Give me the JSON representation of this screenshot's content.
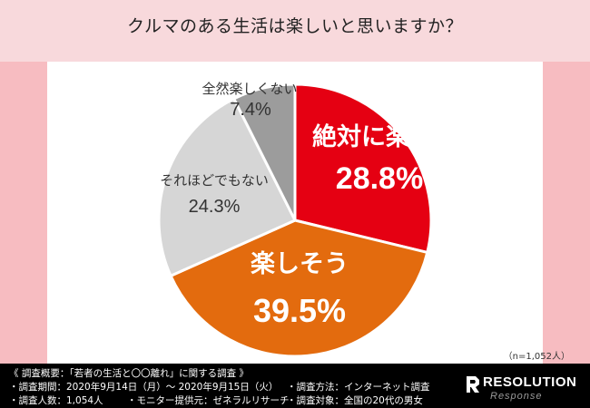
{
  "title": "クルマのある生活は楽しいと思いますか？",
  "sample_note": "（n=1,052人）",
  "chart_data": {
    "type": "pie",
    "title": "クルマのある生活は楽しいと思いますか？",
    "slices": [
      {
        "label": "絶対に楽しい",
        "value": 28.8,
        "display": "28.8%",
        "color": "#e50012",
        "text_color": "#ffffff"
      },
      {
        "label": "楽しそう",
        "value": 39.5,
        "display": "39.5%",
        "color": "#e36b0e",
        "text_color": "#ffffff"
      },
      {
        "label": "それほどでもない",
        "value": 24.3,
        "display": "24.3%",
        "color": "#d6d6d6",
        "text_color": "#333333"
      },
      {
        "label": "全然楽しくない",
        "value": 7.4,
        "display": "7.4%",
        "color": "#9c9c9c",
        "text_color": "#333333"
      }
    ]
  },
  "footer": {
    "heading": "《 調査概要：「若者の生活と〇〇離れ」に関する調査 》",
    "items": [
      "・調査期間：2020年9月14日（月）～ 2020年9月15日（火）",
      "・調査方法：インターネット調査",
      "・調査人数：1,054人",
      "・モニター提供元：ゼネラルリサーチ",
      "・調査対象：全国の20代の男女"
    ],
    "logo_text": "RESOLUTION",
    "logo_sub": "Response"
  }
}
